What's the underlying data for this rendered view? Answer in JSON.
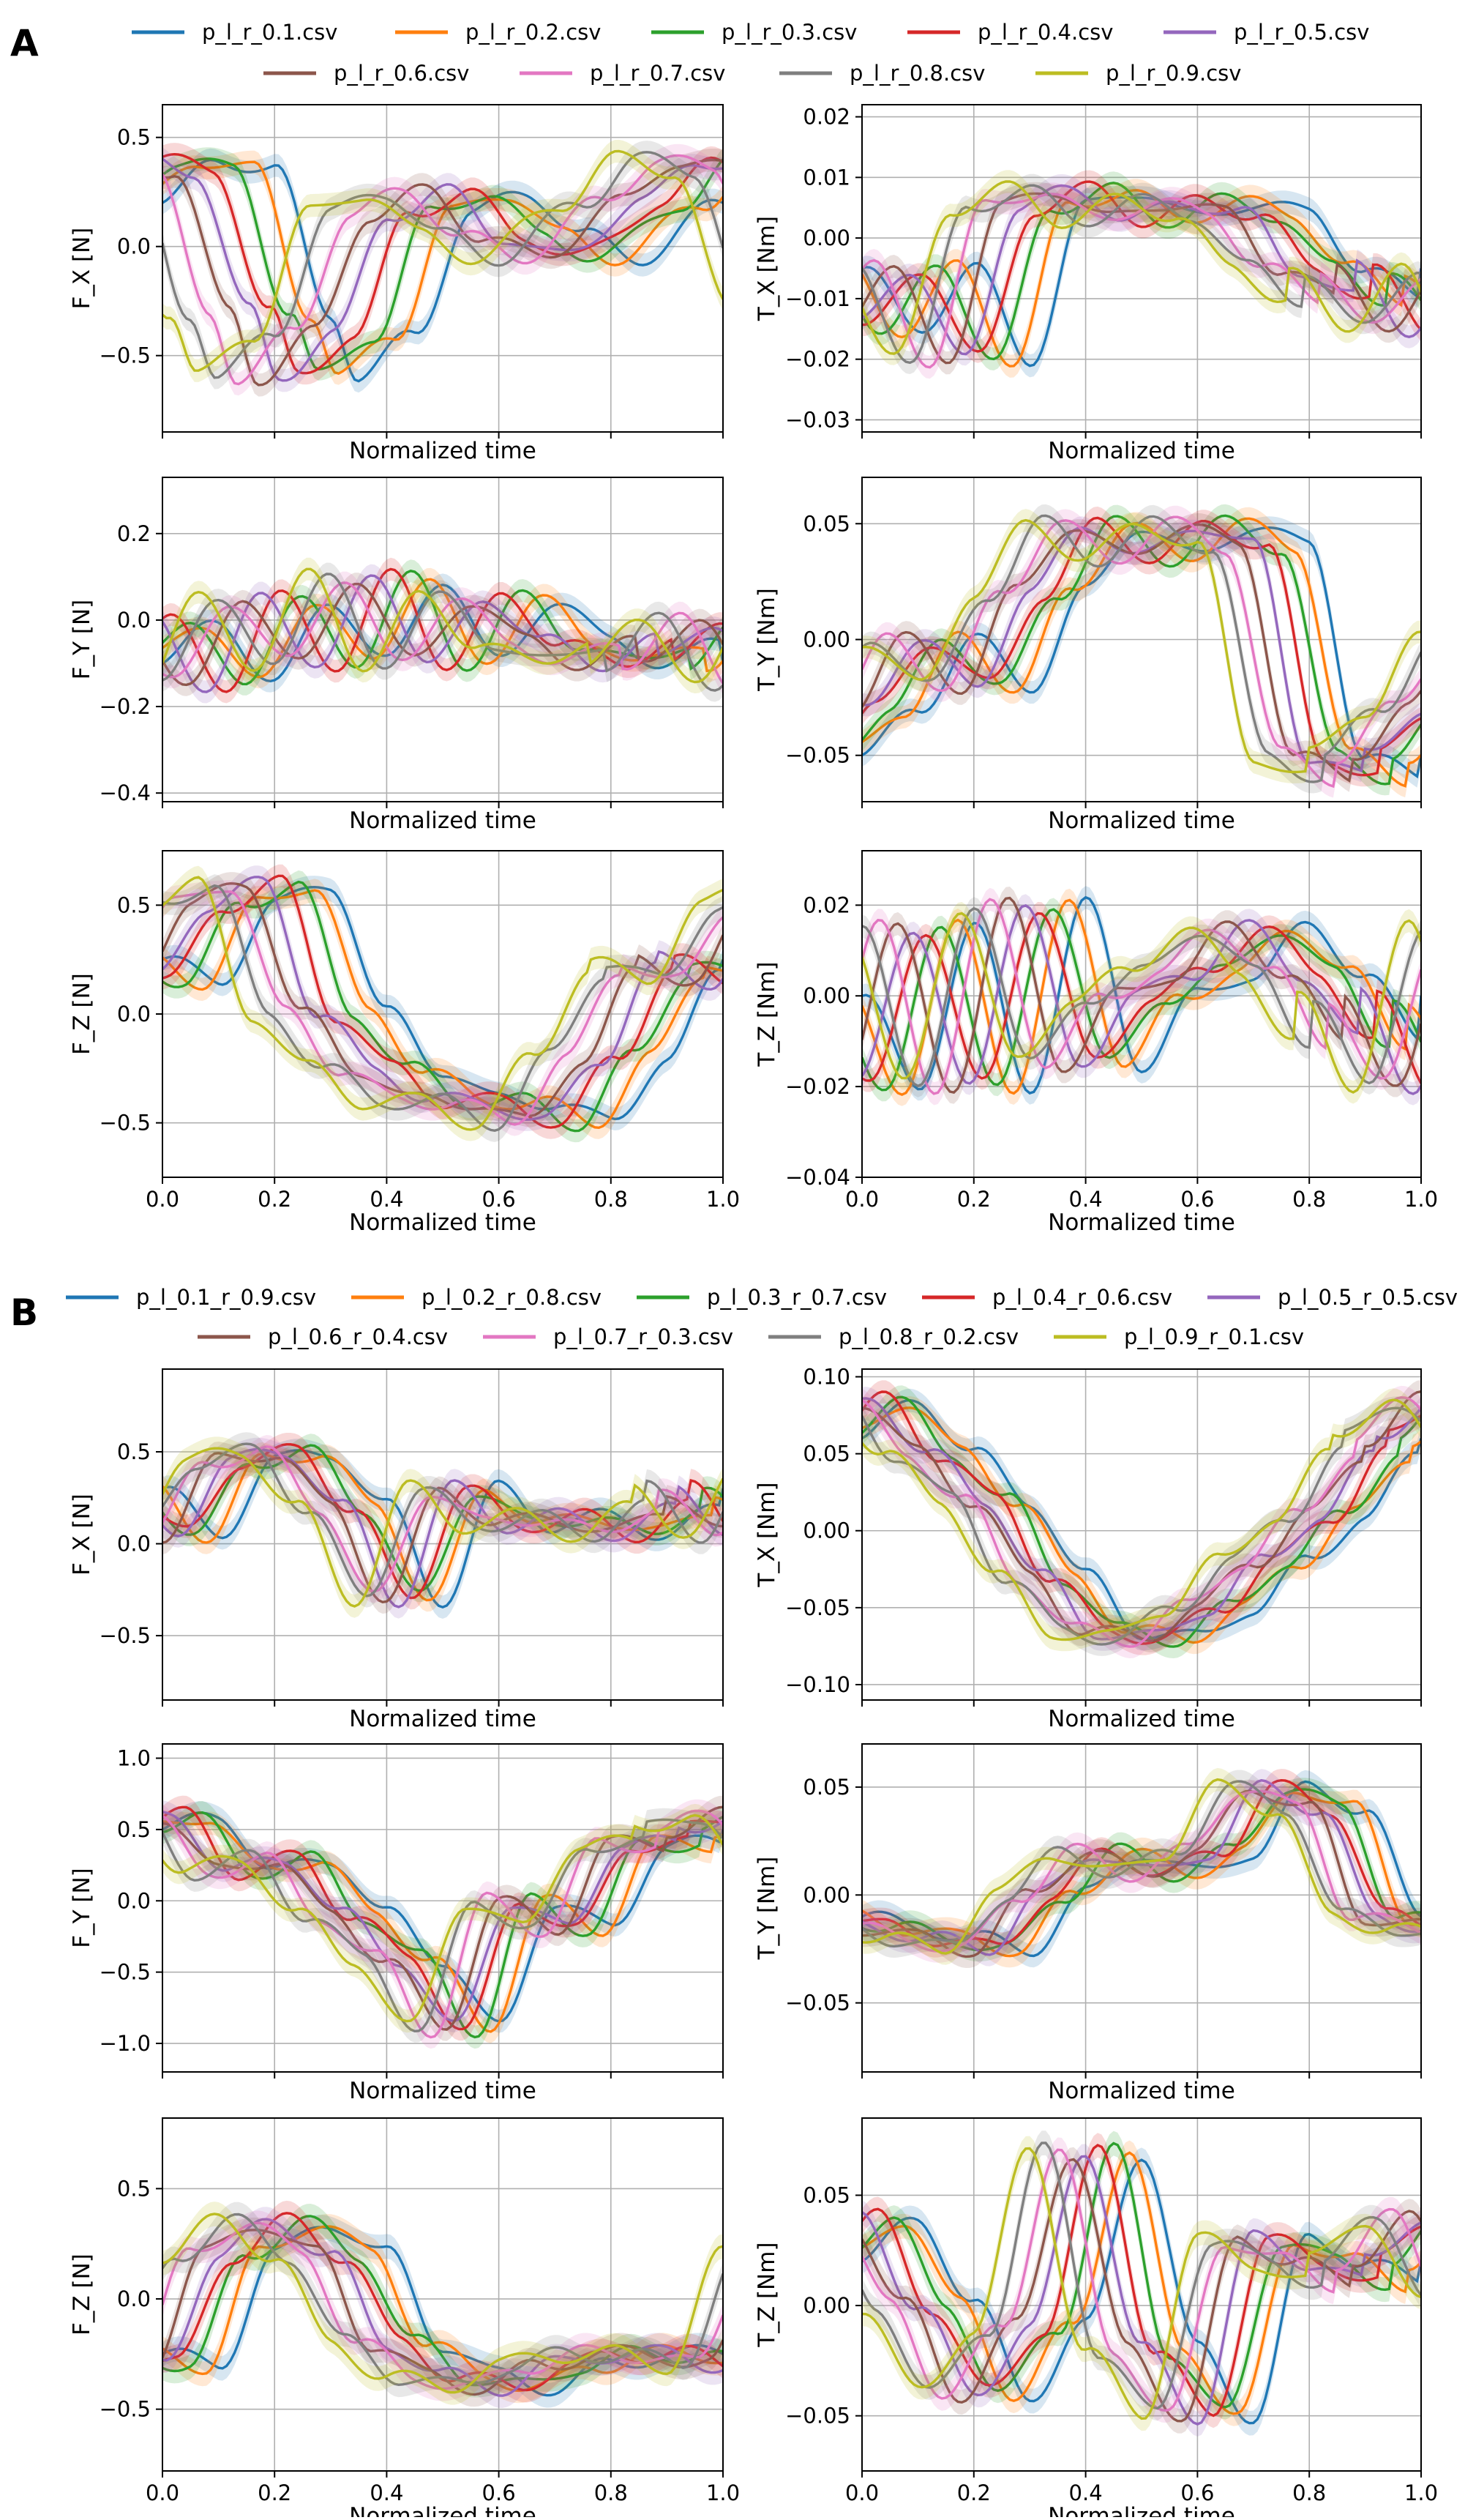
{
  "panels": [
    {
      "label": "A",
      "legend": [
        "p_l_r_0.1.csv",
        "p_l_r_0.2.csv",
        "p_l_r_0.3.csv",
        "p_l_r_0.4.csv",
        "p_l_r_0.5.csv",
        "p_l_r_0.6.csv",
        "p_l_r_0.7.csv",
        "p_l_r_0.8.csv",
        "p_l_r_0.9.csv"
      ]
    },
    {
      "label": "B",
      "legend": [
        "p_l_0.1_r_0.9.csv",
        "p_l_0.2_r_0.8.csv",
        "p_l_0.3_r_0.7.csv",
        "p_l_0.4_r_0.6.csv",
        "p_l_0.5_r_0.5.csv",
        "p_l_0.6_r_0.4.csv",
        "p_l_0.7_r_0.3.csv",
        "p_l_0.8_r_0.2.csv",
        "p_l_0.9_r_0.1.csv"
      ]
    }
  ],
  "series_colors": [
    "#1f77b4",
    "#ff7f0e",
    "#2ca02c",
    "#d62728",
    "#9467bd",
    "#8c564b",
    "#e377c2",
    "#7f7f7f",
    "#bcbd22"
  ],
  "chart_data": [
    {
      "type": "line",
      "panel": "A",
      "title": "",
      "xlabel": "Normalized time",
      "ylabel": "F_X [N]",
      "xlim": [
        0,
        1
      ],
      "ylim": [
        -0.85,
        0.65
      ],
      "xticks": [
        0,
        0.2,
        0.4,
        0.6,
        0.8,
        1.0
      ],
      "yticks": [
        -0.5,
        0,
        0.5
      ],
      "ytick_labels": [
        "−0.5",
        "0.0",
        "0.5"
      ],
      "show_xticklabels": false,
      "grid": true,
      "series_model": {
        "x": [
          0,
          0.1,
          0.2,
          0.3,
          0.35,
          0.45,
          0.55,
          0.65,
          0.75,
          0.85,
          1.0
        ],
        "y": [
          0.2,
          0.4,
          0.35,
          -0.3,
          -0.6,
          -0.4,
          0.15,
          0.25,
          0.05,
          -0.05,
          0.2
        ],
        "shift_per_series": -0.036
      }
    },
    {
      "type": "line",
      "panel": "A",
      "title": "",
      "xlabel": "Normalized time",
      "ylabel": "T_X [Nm]",
      "xlim": [
        0,
        1
      ],
      "ylim": [
        -0.032,
        0.022
      ],
      "xticks": [
        0,
        0.2,
        0.4,
        0.6,
        0.8,
        1.0
      ],
      "yticks": [
        -0.03,
        -0.02,
        -0.01,
        0,
        0.01,
        0.02
      ],
      "ytick_labels": [
        "−0.03",
        "−0.02",
        "−0.01",
        "0.00",
        "0.01",
        "0.02"
      ],
      "show_xticklabels": false,
      "grid": true,
      "series_model": {
        "x": [
          0,
          0.1,
          0.2,
          0.3,
          0.4,
          0.5,
          0.6,
          0.7,
          0.8,
          0.9,
          1.0
        ],
        "y": [
          -0.005,
          -0.015,
          -0.005,
          -0.02,
          0.005,
          0.008,
          0.003,
          0.006,
          0.004,
          -0.005,
          -0.01
        ],
        "shift_per_series": -0.03
      }
    },
    {
      "type": "line",
      "panel": "A",
      "title": "",
      "xlabel": "Normalized time",
      "ylabel": "F_Y [N]",
      "xlim": [
        0,
        1
      ],
      "ylim": [
        -0.42,
        0.33
      ],
      "xticks": [
        0,
        0.2,
        0.4,
        0.6,
        0.8,
        1.0
      ],
      "yticks": [
        -0.4,
        -0.2,
        0,
        0.2
      ],
      "ytick_labels": [
        "−0.4",
        "−0.2",
        "0.0",
        "0.2"
      ],
      "show_xticklabels": false,
      "grid": true,
      "series_model": {
        "x": [
          0,
          0.1,
          0.2,
          0.3,
          0.4,
          0.5,
          0.6,
          0.7,
          0.8,
          0.9,
          1.0
        ],
        "y": [
          -0.1,
          0.0,
          -0.15,
          0.05,
          -0.1,
          0.1,
          -0.1,
          0.05,
          -0.05,
          -0.1,
          -0.05
        ],
        "shift_per_series": -0.03
      }
    },
    {
      "type": "line",
      "panel": "A",
      "title": "",
      "xlabel": "Normalized time",
      "ylabel": "T_Y [Nm]",
      "xlim": [
        0,
        1
      ],
      "ylim": [
        -0.07,
        0.07
      ],
      "xticks": [
        0,
        0.2,
        0.4,
        0.6,
        0.8,
        1.0
      ],
      "yticks": [
        -0.05,
        0,
        0.05
      ],
      "ytick_labels": [
        "−0.05",
        "0.00",
        "0.05"
      ],
      "show_xticklabels": false,
      "grid": true,
      "series_model": {
        "x": [
          0,
          0.1,
          0.2,
          0.3,
          0.4,
          0.5,
          0.6,
          0.7,
          0.8,
          0.9,
          1.0
        ],
        "y": [
          -0.05,
          -0.03,
          0.0,
          -0.02,
          0.02,
          0.05,
          0.035,
          0.05,
          0.04,
          -0.05,
          -0.06
        ],
        "shift_per_series": -0.025
      }
    },
    {
      "type": "line",
      "panel": "A",
      "title": "",
      "xlabel": "Normalized time",
      "ylabel": "F_Z [N]",
      "xlim": [
        0,
        1
      ],
      "ylim": [
        -0.75,
        0.75
      ],
      "xticks": [
        0,
        0.2,
        0.4,
        0.6,
        0.8,
        1.0
      ],
      "yticks": [
        -0.5,
        0,
        0.5
      ],
      "ytick_labels": [
        "−0.5",
        "0.0",
        "0.5"
      ],
      "xtick_labels": [
        "0.0",
        "0.2",
        "0.4",
        "0.6",
        "0.8",
        "1.0"
      ],
      "show_xticklabels": true,
      "grid": true,
      "series_model": {
        "x": [
          0,
          0.1,
          0.2,
          0.3,
          0.4,
          0.5,
          0.6,
          0.7,
          0.8,
          0.9,
          1.0
        ],
        "y": [
          0.25,
          0.15,
          0.5,
          0.6,
          0.0,
          -0.25,
          -0.4,
          -0.4,
          -0.5,
          -0.2,
          0.2
        ],
        "shift_per_series": -0.03
      }
    },
    {
      "type": "line",
      "panel": "A",
      "title": "",
      "xlabel": "Normalized time",
      "ylabel": "T_Z [Nm]",
      "xlim": [
        0,
        1
      ],
      "ylim": [
        -0.04,
        0.032
      ],
      "xticks": [
        0,
        0.2,
        0.4,
        0.6,
        0.8,
        1.0
      ],
      "yticks": [
        -0.04,
        -0.02,
        0,
        0.02
      ],
      "ytick_labels": [
        "−0.04",
        "−0.02",
        "0.00",
        "0.02"
      ],
      "xtick_labels": [
        "0.0",
        "0.2",
        "0.4",
        "0.6",
        "0.8",
        "1.0"
      ],
      "show_xticklabels": true,
      "grid": true,
      "series_model": {
        "x": [
          0,
          0.1,
          0.2,
          0.3,
          0.4,
          0.5,
          0.6,
          0.7,
          0.8,
          0.9,
          1.0
        ],
        "y": [
          0.0,
          -0.02,
          0.015,
          -0.02,
          0.02,
          -0.015,
          0.0,
          0.005,
          0.015,
          0.005,
          -0.01
        ],
        "shift_per_series": -0.028
      }
    },
    {
      "type": "line",
      "panel": "B",
      "title": "",
      "xlabel": "Normalized time",
      "ylabel": "F_X [N]",
      "xlim": [
        0,
        1
      ],
      "ylim": [
        -0.85,
        0.95
      ],
      "xticks": [
        0,
        0.2,
        0.4,
        0.6,
        0.8,
        1.0
      ],
      "yticks": [
        -0.5,
        0,
        0.5
      ],
      "ytick_labels": [
        "−0.5",
        "0.0",
        "0.5"
      ],
      "show_xticklabels": false,
      "grid": true,
      "series_model": {
        "x": [
          0,
          0.1,
          0.2,
          0.3,
          0.4,
          0.5,
          0.6,
          0.7,
          0.8,
          0.9,
          1.0
        ],
        "y": [
          0.3,
          0.05,
          0.45,
          0.5,
          0.2,
          -0.3,
          0.3,
          0.1,
          0.15,
          0.05,
          0.2
        ],
        "shift_per_series": -0.02
      }
    },
    {
      "type": "line",
      "panel": "B",
      "title": "",
      "xlabel": "Normalized time",
      "ylabel": "T_X [Nm]",
      "xlim": [
        0,
        1
      ],
      "ylim": [
        -0.11,
        0.105
      ],
      "xticks": [
        0,
        0.2,
        0.4,
        0.6,
        0.8,
        1.0
      ],
      "yticks": [
        -0.1,
        -0.05,
        0,
        0.05,
        0.1
      ],
      "ytick_labels": [
        "−0.10",
        "−0.05",
        "0.00",
        "0.05",
        "0.10"
      ],
      "show_xticklabels": false,
      "grid": true,
      "series_model": {
        "x": [
          0,
          0.1,
          0.2,
          0.3,
          0.4,
          0.5,
          0.6,
          0.7,
          0.8,
          0.9,
          1.0
        ],
        "y": [
          0.06,
          0.085,
          0.05,
          0.02,
          -0.03,
          -0.065,
          -0.07,
          -0.05,
          -0.02,
          0.01,
          0.05
        ],
        "shift_per_series": -0.02
      }
    },
    {
      "type": "line",
      "panel": "B",
      "title": "",
      "xlabel": "Normalized time",
      "ylabel": "F_Y [N]",
      "xlim": [
        0,
        1
      ],
      "ylim": [
        -1.2,
        1.1
      ],
      "xticks": [
        0,
        0.2,
        0.4,
        0.6,
        0.8,
        1.0
      ],
      "yticks": [
        -1,
        -0.5,
        0,
        0.5,
        1
      ],
      "ytick_labels": [
        "−1.0",
        "−0.5",
        "0.0",
        "0.5",
        "1.0"
      ],
      "show_xticklabels": false,
      "grid": true,
      "series_model": {
        "x": [
          0,
          0.1,
          0.2,
          0.3,
          0.4,
          0.5,
          0.6,
          0.7,
          0.8,
          0.9,
          1.0
        ],
        "y": [
          0.5,
          0.6,
          0.2,
          0.3,
          -0.1,
          -0.4,
          -0.9,
          0.0,
          -0.2,
          0.4,
          0.4
        ],
        "shift_per_series": -0.02
      }
    },
    {
      "type": "line",
      "panel": "B",
      "title": "",
      "xlabel": "Normalized time",
      "ylabel": "T_Y [Nm]",
      "xlim": [
        0,
        1
      ],
      "ylim": [
        -0.082,
        0.07
      ],
      "xticks": [
        0,
        0.2,
        0.4,
        0.6,
        0.8,
        1.0
      ],
      "yticks": [
        -0.05,
        0,
        0.05
      ],
      "ytick_labels": [
        "−0.05",
        "0.00",
        "0.05"
      ],
      "show_xticklabels": false,
      "grid": true,
      "series_model": {
        "x": [
          0,
          0.1,
          0.2,
          0.3,
          0.4,
          0.5,
          0.6,
          0.7,
          0.8,
          0.9,
          1.0
        ],
        "y": [
          -0.01,
          -0.015,
          -0.02,
          -0.025,
          0.0,
          0.02,
          0.01,
          0.02,
          0.05,
          0.04,
          -0.01
        ],
        "shift_per_series": -0.02
      }
    },
    {
      "type": "line",
      "panel": "B",
      "title": "",
      "xlabel": "Normalized time",
      "ylabel": "F_Z [N]",
      "xlim": [
        0,
        1
      ],
      "ylim": [
        -0.78,
        0.82
      ],
      "xticks": [
        0,
        0.2,
        0.4,
        0.6,
        0.8,
        1.0
      ],
      "yticks": [
        -0.5,
        0,
        0.5
      ],
      "ytick_labels": [
        "−0.5",
        "0.0",
        "0.5"
      ],
      "xtick_labels": [
        "0.0",
        "0.2",
        "0.4",
        "0.6",
        "0.8",
        "1.0"
      ],
      "show_xticklabels": true,
      "grid": true,
      "series_model": {
        "x": [
          0,
          0.1,
          0.2,
          0.3,
          0.4,
          0.5,
          0.6,
          0.7,
          0.8,
          0.9,
          1.0
        ],
        "y": [
          -0.25,
          -0.3,
          0.2,
          0.35,
          0.2,
          -0.2,
          -0.35,
          -0.4,
          -0.3,
          -0.25,
          -0.25
        ],
        "shift_per_series": -0.025
      }
    },
    {
      "type": "line",
      "panel": "B",
      "title": "",
      "xlabel": "Normalized time",
      "ylabel": "T_Z [Nm]",
      "xlim": [
        0,
        1
      ],
      "ylim": [
        -0.075,
        0.085
      ],
      "xticks": [
        0,
        0.2,
        0.4,
        0.6,
        0.8,
        1.0
      ],
      "yticks": [
        -0.05,
        0,
        0.05
      ],
      "ytick_labels": [
        "−0.05",
        "0.00",
        "0.05"
      ],
      "xtick_labels": [
        "0.0",
        "0.2",
        "0.4",
        "0.6",
        "0.8",
        "1.0"
      ],
      "show_xticklabels": true,
      "grid": true,
      "series_model": {
        "x": [
          0,
          0.1,
          0.2,
          0.3,
          0.4,
          0.5,
          0.6,
          0.7,
          0.8,
          0.9,
          1.0
        ],
        "y": [
          0.02,
          0.04,
          0.0,
          -0.04,
          -0.01,
          0.07,
          -0.02,
          -0.05,
          0.03,
          0.02,
          0.01
        ],
        "shift_per_series": -0.025
      }
    }
  ]
}
